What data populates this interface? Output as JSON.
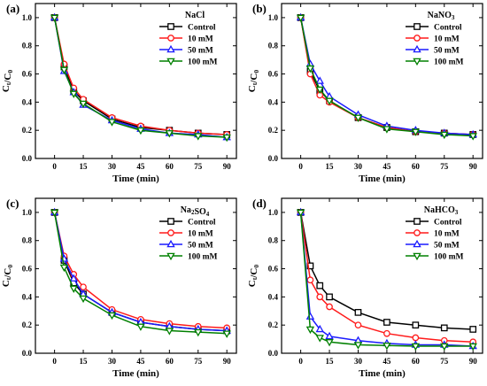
{
  "figure": {
    "colors": {
      "Control": "#000000",
      "10 mM": "#ff1a1a",
      "50 mM": "#1a1aff",
      "100 mM": "#008000"
    },
    "markers": {
      "Control": "square",
      "10 mM": "circle",
      "50 mM": "triangle-up",
      "100 mM": "triangle-down"
    }
  },
  "chart_data": [
    {
      "panel": "(a)",
      "type": "line",
      "title": "NaCl",
      "xlabel": "Time (min)",
      "ylabel": "Ct/C0",
      "xlim": [
        -10,
        95
      ],
      "ylim": [
        0.0,
        1.1
      ],
      "xticks": [
        0,
        15,
        30,
        45,
        60,
        75,
        90
      ],
      "yticks": [
        0.0,
        0.2,
        0.4,
        0.6,
        0.8,
        1.0
      ],
      "xtick_labels": [
        "0",
        "15",
        "30",
        "45",
        "60",
        "75",
        "90"
      ],
      "ytick_labels": [
        "0.0",
        "0.2",
        "0.4",
        "0.6",
        "0.8",
        "1.0"
      ],
      "legend_position": "top-right",
      "x": [
        0,
        5,
        10,
        15,
        30,
        45,
        60,
        75,
        90
      ],
      "series": [
        {
          "name": "Control",
          "values": [
            1.0,
            0.65,
            0.48,
            0.41,
            0.28,
            0.22,
            0.2,
            0.18,
            0.17
          ]
        },
        {
          "name": "10 mM",
          "values": [
            1.0,
            0.67,
            0.5,
            0.42,
            0.29,
            0.23,
            0.2,
            0.18,
            0.17
          ]
        },
        {
          "name": "50 mM",
          "values": [
            1.0,
            0.62,
            0.47,
            0.38,
            0.27,
            0.21,
            0.18,
            0.17,
            0.15
          ]
        },
        {
          "name": "100 mM",
          "values": [
            1.0,
            0.63,
            0.46,
            0.39,
            0.26,
            0.2,
            0.18,
            0.16,
            0.15
          ]
        }
      ]
    },
    {
      "panel": "(b)",
      "type": "line",
      "title": "NaNO3",
      "xlabel": "Time (min)",
      "ylabel": "Ct/C0",
      "xlim": [
        -10,
        95
      ],
      "ylim": [
        0.0,
        1.1
      ],
      "xticks": [
        0,
        15,
        30,
        45,
        60,
        75,
        90
      ],
      "yticks": [
        0.0,
        0.2,
        0.4,
        0.6,
        0.8,
        1.0
      ],
      "xtick_labels": [
        "0",
        "15",
        "30",
        "45",
        "60",
        "75",
        "90"
      ],
      "ytick_labels": [
        "0.0",
        "0.2",
        "0.4",
        "0.6",
        "0.8",
        "1.0"
      ],
      "legend_position": "top-right",
      "x": [
        0,
        5,
        10,
        15,
        30,
        45,
        60,
        75,
        90
      ],
      "series": [
        {
          "name": "Control",
          "values": [
            1.0,
            0.62,
            0.48,
            0.41,
            0.29,
            0.22,
            0.19,
            0.18,
            0.17
          ]
        },
        {
          "name": "10 mM",
          "values": [
            1.0,
            0.6,
            0.45,
            0.4,
            0.29,
            0.22,
            0.19,
            0.18,
            0.17
          ]
        },
        {
          "name": "50 mM",
          "values": [
            1.0,
            0.67,
            0.55,
            0.44,
            0.31,
            0.23,
            0.2,
            0.18,
            0.17
          ]
        },
        {
          "name": "100 mM",
          "values": [
            1.0,
            0.64,
            0.49,
            0.41,
            0.29,
            0.21,
            0.19,
            0.17,
            0.16
          ]
        }
      ]
    },
    {
      "panel": "(c)",
      "type": "line",
      "title": "Na2SO4",
      "xlabel": "Time (min)",
      "ylabel": "Ct/C0",
      "xlim": [
        -10,
        95
      ],
      "ylim": [
        0.0,
        1.1
      ],
      "xticks": [
        0,
        15,
        30,
        45,
        60,
        75,
        90
      ],
      "yticks": [
        0.0,
        0.2,
        0.4,
        0.6,
        0.8,
        1.0
      ],
      "xtick_labels": [
        "0",
        "15",
        "30",
        "45",
        "60",
        "75",
        "90"
      ],
      "ytick_labels": [
        "0.0",
        "0.2",
        "0.4",
        "0.6",
        "0.8",
        "1.0"
      ],
      "legend_position": "top-right",
      "x": [
        0,
        5,
        10,
        15,
        30,
        45,
        60,
        75,
        90
      ],
      "series": [
        {
          "name": "Control",
          "values": [
            1.0,
            0.66,
            0.5,
            0.42,
            0.29,
            0.22,
            0.19,
            0.17,
            0.16
          ]
        },
        {
          "name": "10 mM",
          "values": [
            1.0,
            0.69,
            0.56,
            0.47,
            0.31,
            0.24,
            0.21,
            0.19,
            0.18
          ]
        },
        {
          "name": "50 mM",
          "values": [
            1.0,
            0.67,
            0.53,
            0.42,
            0.29,
            0.22,
            0.19,
            0.17,
            0.16
          ]
        },
        {
          "name": "100 mM",
          "values": [
            1.0,
            0.61,
            0.46,
            0.39,
            0.27,
            0.19,
            0.16,
            0.15,
            0.14
          ]
        }
      ]
    },
    {
      "panel": "(d)",
      "type": "line",
      "title": "NaHCO3",
      "xlabel": "Time (min)",
      "ylabel": "Ct/C0",
      "xlim": [
        -10,
        95
      ],
      "ylim": [
        0.0,
        1.1
      ],
      "xticks": [
        0,
        15,
        30,
        45,
        60,
        75,
        90
      ],
      "yticks": [
        0.0,
        0.2,
        0.4,
        0.6,
        0.8,
        1.0
      ],
      "xtick_labels": [
        "0",
        "15",
        "30",
        "45",
        "60",
        "75",
        "90"
      ],
      "ytick_labels": [
        "0.0",
        "0.2",
        "0.4",
        "0.6",
        "0.8",
        "1.0"
      ],
      "legend_position": "top-right",
      "x": [
        0,
        5,
        10,
        15,
        30,
        45,
        60,
        75,
        90
      ],
      "series": [
        {
          "name": "Control",
          "values": [
            1.0,
            0.62,
            0.48,
            0.4,
            0.29,
            0.22,
            0.2,
            0.18,
            0.17
          ]
        },
        {
          "name": "10 mM",
          "values": [
            1.0,
            0.52,
            0.4,
            0.33,
            0.2,
            0.14,
            0.11,
            0.09,
            0.08
          ]
        },
        {
          "name": "50 mM",
          "values": [
            1.0,
            0.26,
            0.17,
            0.12,
            0.09,
            0.07,
            0.06,
            0.06,
            0.05
          ]
        },
        {
          "name": "100 mM",
          "values": [
            1.0,
            0.17,
            0.11,
            0.08,
            0.06,
            0.055,
            0.05,
            0.05,
            0.05
          ]
        }
      ]
    }
  ]
}
